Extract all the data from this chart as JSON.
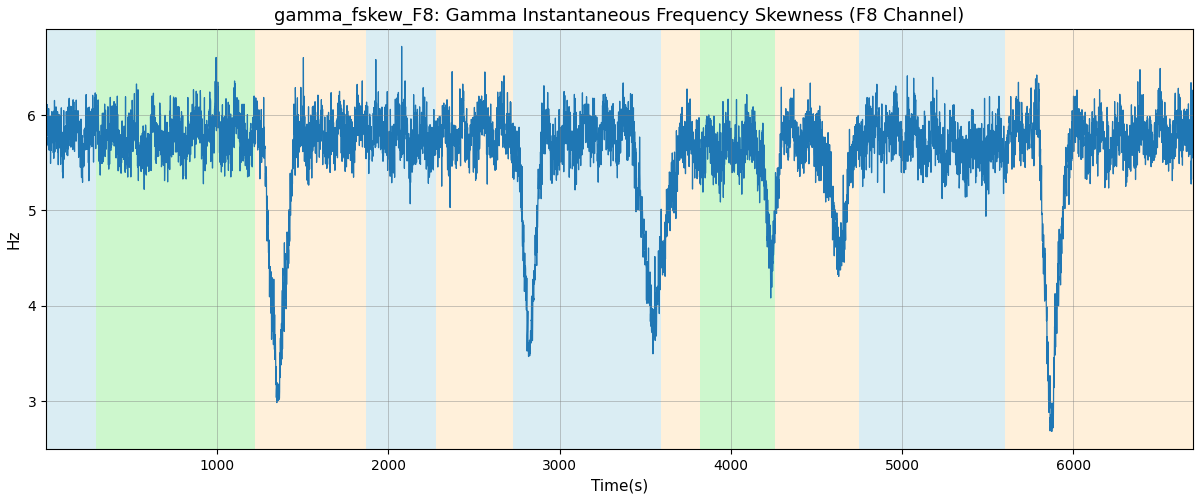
{
  "title": "gamma_fskew_F8: Gamma Instantaneous Frequency Skewness (F8 Channel)",
  "xlabel": "Time(s)",
  "ylabel": "Hz",
  "xlim": [
    0,
    6700
  ],
  "ylim": [
    2.5,
    6.9
  ],
  "yticks": [
    3,
    4,
    5,
    6
  ],
  "xticks": [
    1000,
    2000,
    3000,
    4000,
    5000,
    6000
  ],
  "bg_bands": [
    {
      "xmin": 0,
      "xmax": 290,
      "color": "#ADD8E6",
      "alpha": 0.45
    },
    {
      "xmin": 290,
      "xmax": 1220,
      "color": "#90EE90",
      "alpha": 0.45
    },
    {
      "xmin": 1220,
      "xmax": 1870,
      "color": "#FFDEAD",
      "alpha": 0.45
    },
    {
      "xmin": 1870,
      "xmax": 2280,
      "color": "#ADD8E6",
      "alpha": 0.45
    },
    {
      "xmin": 2280,
      "xmax": 2730,
      "color": "#FFDEAD",
      "alpha": 0.45
    },
    {
      "xmin": 2730,
      "xmax": 3590,
      "color": "#ADD8E6",
      "alpha": 0.45
    },
    {
      "xmin": 3590,
      "xmax": 3820,
      "color": "#FFDEAD",
      "alpha": 0.45
    },
    {
      "xmin": 3820,
      "xmax": 4260,
      "color": "#90EE90",
      "alpha": 0.45
    },
    {
      "xmin": 4260,
      "xmax": 4750,
      "color": "#FFDEAD",
      "alpha": 0.45
    },
    {
      "xmin": 4750,
      "xmax": 5600,
      "color": "#ADD8E6",
      "alpha": 0.45
    },
    {
      "xmin": 5600,
      "xmax": 6700,
      "color": "#FFDEAD",
      "alpha": 0.45
    }
  ],
  "line_color": "#1f77b4",
  "line_width": 0.9,
  "title_fontsize": 13,
  "label_fontsize": 11,
  "tick_fontsize": 10
}
